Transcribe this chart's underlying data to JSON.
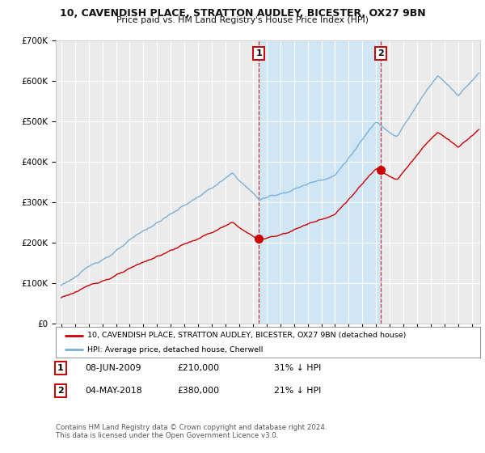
{
  "title": "10, CAVENDISH PLACE, STRATTON AUDLEY, BICESTER, OX27 9BN",
  "subtitle": "Price paid vs. HM Land Registry's House Price Index (HPI)",
  "ylim": [
    0,
    700000
  ],
  "yticks": [
    0,
    100000,
    200000,
    300000,
    400000,
    500000,
    600000,
    700000
  ],
  "ytick_labels": [
    "£0",
    "£100K",
    "£200K",
    "£300K",
    "£400K",
    "£500K",
    "£600K",
    "£700K"
  ],
  "hpi_color": "#7ab0d8",
  "price_color": "#cc0000",
  "background_color": "#ffffff",
  "plot_bg_color": "#ebebeb",
  "shade_color": "#d0e6f5",
  "grid_color": "#ffffff",
  "annotation1_year": 2009.44,
  "annotation1_price": 210000,
  "annotation2_year": 2018.34,
  "annotation2_price": 380000,
  "legend_line1": "10, CAVENDISH PLACE, STRATTON AUDLEY, BICESTER, OX27 9BN (detached house)",
  "legend_line2": "HPI: Average price, detached house, Cherwell",
  "ann1_date": "08-JUN-2009",
  "ann1_price_str": "£210,000",
  "ann1_pct": "31% ↓ HPI",
  "ann2_date": "04-MAY-2018",
  "ann2_price_str": "£380,000",
  "ann2_pct": "21% ↓ HPI",
  "footer1": "Contains HM Land Registry data © Crown copyright and database right 2024.",
  "footer2": "This data is licensed under the Open Government Licence v3.0."
}
